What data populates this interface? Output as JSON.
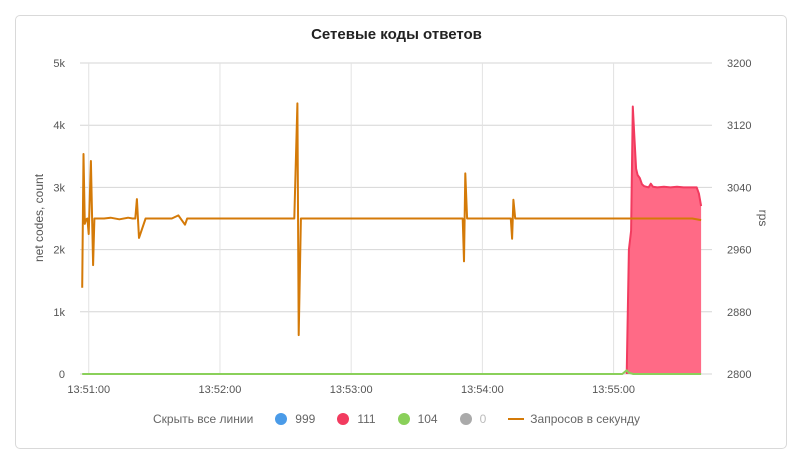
{
  "chart_data": {
    "type": "line",
    "title": "Сетевые коды ответов",
    "ylabel_left": "net codes, count",
    "ylabel_right": "rps",
    "x_ticks": [
      "13:51:00",
      "13:52:00",
      "13:53:00",
      "13:54:00",
      "13:55:00"
    ],
    "x_tick_seconds": [
      0,
      60,
      120,
      180,
      240
    ],
    "xlim_seconds": [
      -4,
      285
    ],
    "left_axis": {
      "ylim": [
        0,
        5000
      ],
      "ticks": [
        0,
        1000,
        2000,
        3000,
        4000,
        5000
      ],
      "tick_labels": [
        "0",
        "1k",
        "2k",
        "3k",
        "4k",
        "5k"
      ]
    },
    "right_axis": {
      "ylim": [
        2800,
        3200
      ],
      "ticks": [
        2800,
        2880,
        2960,
        3040,
        3120,
        3200
      ],
      "tick_labels": [
        "2800",
        "2880",
        "2960",
        "3040",
        "3120",
        "3200"
      ]
    },
    "grid": true,
    "legend_position": "bottom",
    "series": [
      {
        "name": "111",
        "type": "area",
        "axis": "left",
        "color": "#f23b5f",
        "fill": "#ff6a86",
        "x": [
          246,
          247,
          248,
          248.8,
          249.5,
          250.3,
          251,
          252,
          253,
          254,
          255,
          256,
          257,
          258,
          260,
          263,
          266,
          269,
          272,
          275,
          278,
          279,
          280
        ],
        "y": [
          0,
          2000,
          2300,
          4300,
          3800,
          3300,
          3200,
          3150,
          3050,
          3020,
          3010,
          3000,
          3060,
          3010,
          3000,
          3010,
          3000,
          3010,
          3000,
          3000,
          3000,
          2900,
          2700
        ]
      },
      {
        "name": "104",
        "type": "line",
        "axis": "left",
        "color": "#8ad05a",
        "x": [
          -3,
          244,
          246,
          247,
          249,
          280
        ],
        "y": [
          0,
          0,
          60,
          20,
          0,
          0
        ]
      },
      {
        "name": "999",
        "type": "line",
        "axis": "left",
        "color": "#4a9be8",
        "hidden": true,
        "x": [],
        "y": []
      },
      {
        "name": "0",
        "type": "line",
        "axis": "left",
        "color": "#aaaaaa",
        "disabled": true,
        "x": [],
        "y": []
      },
      {
        "name": "Запросов в секунду",
        "type": "line",
        "axis": "right",
        "color": "#d47a08",
        "x": [
          -3,
          -2.4,
          -1.8,
          -1.2,
          -0.6,
          0,
          1,
          2,
          2.6,
          3.2,
          3.8,
          5,
          7,
          10,
          14,
          18,
          20,
          21.3,
          22,
          23,
          26,
          30,
          34,
          38,
          41,
          44,
          45,
          46,
          47,
          50,
          54,
          58,
          62,
          66,
          70,
          74,
          78,
          82,
          86,
          90,
          94,
          95.4,
          96,
          97,
          98,
          100,
          104,
          108,
          112,
          116,
          120,
          124,
          128,
          132,
          136,
          140,
          144,
          148,
          152,
          156,
          160,
          164,
          168,
          171,
          171.6,
          172.2,
          173,
          174,
          178,
          182,
          186,
          190,
          193,
          193.6,
          194.2,
          195,
          196,
          200,
          205,
          210,
          215,
          220,
          225,
          230,
          235,
          240,
          244,
          248,
          252,
          256,
          260,
          264,
          268,
          272,
          276,
          280
        ],
        "y": [
          2911,
          3083,
          2993,
          2999,
          3000,
          2980,
          3074,
          2940,
          3000,
          3000,
          3000,
          3000,
          3000,
          3001,
          2999,
          3001,
          3000,
          3000,
          3025,
          2975,
          3000,
          3000,
          3000,
          3000,
          3004,
          2992,
          3000,
          3000,
          3000,
          3000,
          3000,
          3000,
          3000,
          3000,
          3000,
          3000,
          3000,
          3000,
          3000,
          3000,
          3000,
          3148,
          2850,
          3000,
          3000,
          3000,
          3000,
          3000,
          3000,
          3000,
          3000,
          3000,
          3000,
          3000,
          3000,
          3000,
          3000,
          3000,
          3000,
          3000,
          3000,
          3000,
          3000,
          3000,
          2945,
          3058,
          3000,
          3000,
          3000,
          3000,
          3000,
          3000,
          3000,
          2974,
          3024,
          3000,
          3000,
          3000,
          3000,
          3000,
          3000,
          3000,
          3000,
          3000,
          3000,
          3000,
          3000,
          3000,
          3000,
          3000,
          3000,
          3000,
          3000,
          3000,
          3000,
          2998
        ]
      }
    ]
  },
  "legend": {
    "hide_all_label": "Скрыть все линии",
    "items": [
      {
        "name": "999",
        "color": "#4a9be8",
        "marker": "dot",
        "disabled": false
      },
      {
        "name": "111",
        "color": "#f23b5f",
        "marker": "dot",
        "disabled": false
      },
      {
        "name": "104",
        "color": "#8ad05a",
        "marker": "dot",
        "disabled": false
      },
      {
        "name": "0",
        "color": "#aaaaaa",
        "marker": "dot",
        "disabled": true
      },
      {
        "name": "Запросов в секунду",
        "color": "#d47a08",
        "marker": "line",
        "disabled": false
      }
    ]
  }
}
